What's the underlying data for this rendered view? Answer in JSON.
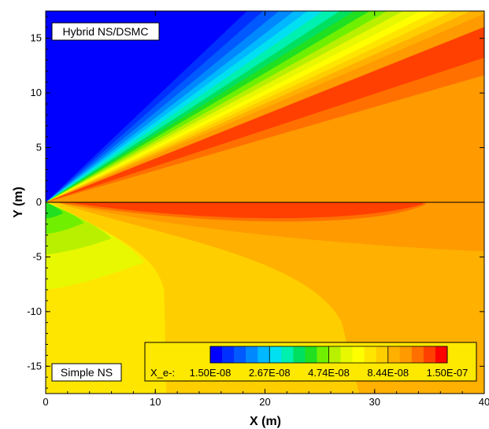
{
  "chart_data": {
    "type": "heatmap",
    "variable_label": "X_e-:",
    "xlabel": "X (m)",
    "ylabel": "Y (m)",
    "xlim": [
      0,
      40
    ],
    "ylim": [
      -17.5,
      17.5
    ],
    "x_ticks": [
      0,
      10,
      20,
      30,
      40
    ],
    "y_ticks": [
      15,
      10,
      5,
      0,
      -5,
      -10,
      -15
    ],
    "x_tick_labels": [
      "0",
      "10",
      "20",
      "30",
      "40"
    ],
    "y_tick_labels": [
      "15",
      "10",
      "5",
      "0",
      "-5",
      "-10",
      "-15"
    ],
    "region_labels": {
      "upper": "Hybrid NS/DSMC",
      "lower": "Simple NS"
    },
    "colorbar": {
      "scale": "log",
      "range": [
        1.5e-08,
        1.5e-07
      ],
      "tick_labels": [
        "1.50E-08",
        "2.67E-08",
        "4.74E-08",
        "8.44E-08",
        "1.50E-07"
      ],
      "colors": [
        "#0000ff",
        "#0030ff",
        "#005aff",
        "#0088ff",
        "#00b8ff",
        "#00e0f0",
        "#00f0b0",
        "#00e060",
        "#20e020",
        "#70f000",
        "#b8f000",
        "#e8f800",
        "#ffff00",
        "#ffe600",
        "#ffce00",
        "#ffb000",
        "#ff9a00",
        "#ff7000",
        "#ff4000",
        "#ff0000"
      ]
    },
    "upper_half": {
      "description_of_structure": "fan of bands radiating from origin",
      "bands": [
        {
          "level": 0,
          "color": "#0000ff",
          "top_slope": 0.95
        },
        {
          "level": 1,
          "color": "#0030ff",
          "top_slope": 0.95
        },
        {
          "level": 2,
          "color": "#005aff",
          "top_slope": 0.88
        },
        {
          "level": 3,
          "color": "#0088ff",
          "top_slope": 0.82
        },
        {
          "level": 4,
          "color": "#00b8ff",
          "top_slope": 0.77
        },
        {
          "level": 5,
          "color": "#00e0f0",
          "top_slope": 0.73
        },
        {
          "level": 6,
          "color": "#00f0b0",
          "top_slope": 0.69
        },
        {
          "level": 7,
          "color": "#00e060",
          "top_slope": 0.65
        },
        {
          "level": 8,
          "color": "#20e020",
          "top_slope": 0.62
        },
        {
          "level": 9,
          "color": "#70f000",
          "top_slope": 0.59
        },
        {
          "level": 10,
          "color": "#b8f000",
          "top_slope": 0.56
        },
        {
          "level": 11,
          "color": "#e8f800",
          "top_slope": 0.535
        },
        {
          "level": 12,
          "color": "#ffff00",
          "top_slope": 0.51
        },
        {
          "level": 13,
          "color": "#ffe600",
          "top_slope": 0.49
        },
        {
          "level": 14,
          "color": "#ffce00",
          "top_slope": 0.47
        },
        {
          "level": 15,
          "color": "#ffb000",
          "top_slope": 0.45
        },
        {
          "level": 16,
          "color": "#ff9a00",
          "top_slope": 0.43
        },
        {
          "level": 18,
          "color": "#ff4000",
          "top_slope": 0.4
        },
        {
          "level": 17,
          "color": "#ff7000",
          "top_slope": 0.33
        },
        {
          "level": 16,
          "color": "#ff9a00",
          "top_slope": 0.29
        }
      ]
    }
  }
}
